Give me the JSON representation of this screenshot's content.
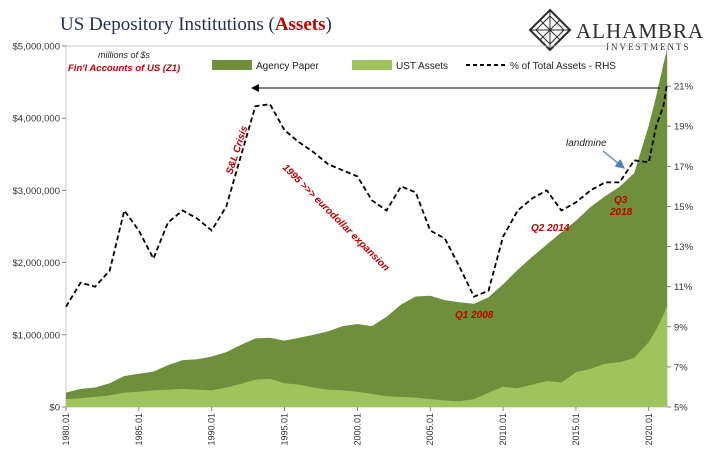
{
  "title": {
    "main": "US Depository Institutions (",
    "highlight": "Assets",
    "close": ")"
  },
  "notes": {
    "units": "millions of $s",
    "source": "Fin'l Accounts of US (Z1)"
  },
  "brand": {
    "name": "ALHAMBRA",
    "sub": "INVESTMENTS",
    "logo_icon": "diamond-logo-icon"
  },
  "colors": {
    "agency": "#6e8f3c",
    "ust": "#9fc45c",
    "line": "#000000",
    "annotation": "#c00000",
    "arrow_blue": "#4f81bd"
  },
  "annotations": {
    "sl_crisis": "S&L Crisis",
    "expansion": "1995 >>> eurodollar expansion",
    "q1_2008": "Q1 2008",
    "q2_2014": "Q2 2014",
    "landmine": "landmine",
    "q3_2018_line1": "Q3",
    "q3_2018_line2": "2018"
  },
  "chart_data": {
    "type": "area",
    "legend_placement": "top",
    "x": [
      1980.0,
      1981.0,
      1982.0,
      1983.0,
      1984.0,
      1985.0,
      1986.0,
      1987.0,
      1988.0,
      1989.0,
      1990.0,
      1991.0,
      1992.0,
      1993.0,
      1994.0,
      1995.0,
      1996.0,
      1997.0,
      1998.0,
      1999.0,
      2000.0,
      2001.0,
      2002.0,
      2003.0,
      2004.0,
      2005.0,
      2006.0,
      2007.0,
      2008.0,
      2009.0,
      2010.0,
      2011.0,
      2012.0,
      2013.0,
      2014.0,
      2015.0,
      2016.0,
      2017.0,
      2018.0,
      2019.0,
      2020.0,
      2020.5,
      2021.0,
      2021.25
    ],
    "x_ticks": [
      "1980.01",
      "1985.01",
      "1990.01",
      "1995.01",
      "2000.01",
      "2005.01",
      "2010.01",
      "2015.01",
      "2020.01"
    ],
    "x_tick_values": [
      1980,
      1985,
      1990,
      1995,
      2000,
      2005,
      2010,
      2015,
      2020
    ],
    "series": [
      {
        "name": "Agency Paper",
        "axis": "left",
        "values": [
          200000,
          250000,
          270000,
          330000,
          430000,
          460000,
          490000,
          580000,
          650000,
          660000,
          700000,
          760000,
          860000,
          950000,
          960000,
          920000,
          960000,
          1000000,
          1050000,
          1120000,
          1150000,
          1120000,
          1250000,
          1420000,
          1530000,
          1540000,
          1480000,
          1450000,
          1430000,
          1520000,
          1700000,
          1900000,
          2080000,
          2250000,
          2420000,
          2580000,
          2770000,
          2920000,
          3050000,
          3240000,
          3900000,
          4300000,
          4750000,
          4950000
        ]
      },
      {
        "name": "UST Assets",
        "axis": "left",
        "values": [
          110000,
          120000,
          140000,
          160000,
          200000,
          210000,
          230000,
          240000,
          250000,
          240000,
          230000,
          270000,
          320000,
          380000,
          390000,
          330000,
          310000,
          270000,
          240000,
          230000,
          210000,
          180000,
          150000,
          140000,
          130000,
          110000,
          90000,
          80000,
          110000,
          200000,
          280000,
          260000,
          310000,
          360000,
          340000,
          480000,
          530000,
          600000,
          620000,
          680000,
          900000,
          1070000,
          1270000,
          1400000
        ]
      },
      {
        "name": "% of Total Assets - RHS",
        "axis": "right",
        "style": "dashed",
        "values": [
          10.0,
          11.2,
          11.0,
          11.8,
          14.8,
          13.8,
          12.4,
          14.2,
          14.8,
          14.4,
          13.8,
          15.0,
          17.5,
          20.0,
          20.1,
          18.8,
          18.2,
          17.7,
          17.1,
          16.8,
          16.5,
          15.3,
          14.8,
          16.0,
          15.7,
          13.8,
          13.4,
          12.0,
          10.5,
          10.8,
          13.5,
          14.8,
          15.4,
          15.8,
          14.8,
          15.2,
          15.8,
          16.2,
          16.2,
          17.3,
          17.2,
          19.0,
          20.0,
          21.1
        ]
      }
    ],
    "y_left": {
      "min": 0,
      "max": 5000000,
      "ticks": [
        "$0",
        "$1,000,000",
        "$2,000,000",
        "$3,000,000",
        "$4,000,000",
        "$5,000,000"
      ],
      "tick_values": [
        0,
        1000000,
        2000000,
        3000000,
        4000000,
        5000000
      ]
    },
    "y_right": {
      "min": 5,
      "max": 23,
      "ticks": [
        "5%",
        "7%",
        "9%",
        "11%",
        "13%",
        "15%",
        "17%",
        "19%",
        "21%"
      ],
      "tick_values": [
        5,
        7,
        9,
        11,
        13,
        15,
        17,
        19,
        21
      ]
    }
  }
}
